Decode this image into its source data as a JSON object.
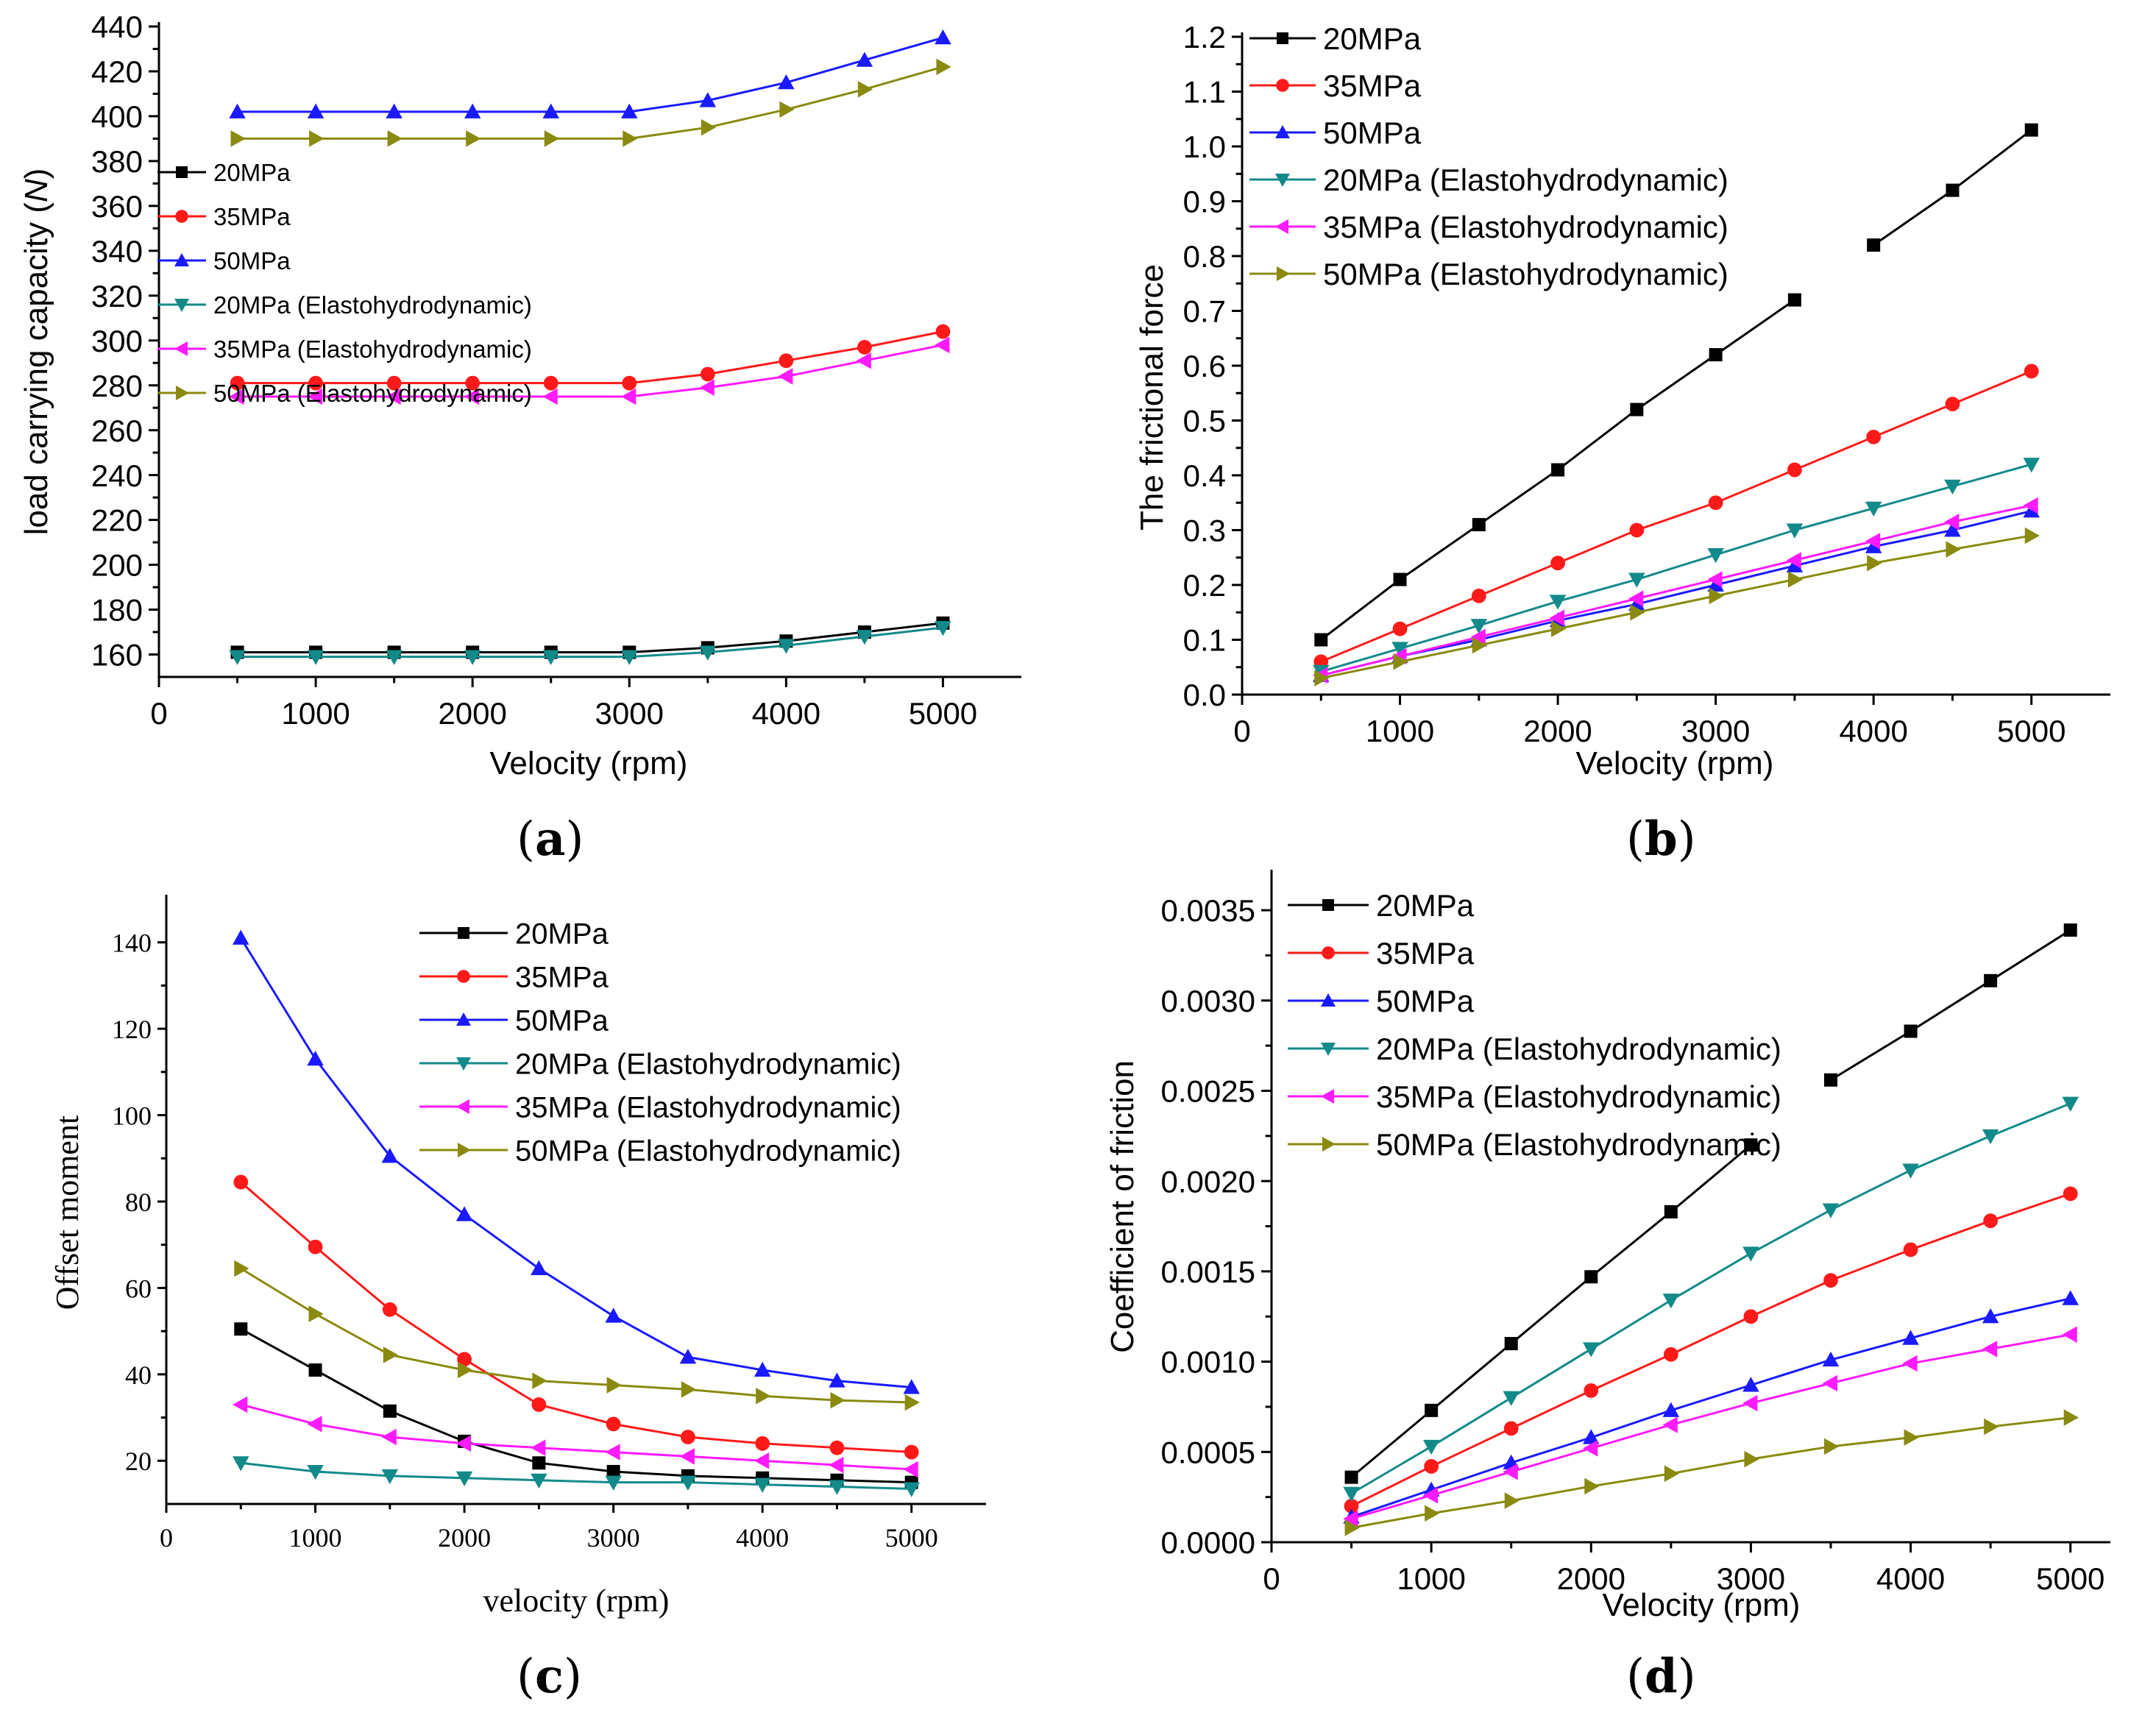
{
  "colors": {
    "20MPa": "#000000",
    "35MPa": "#ff1a1a",
    "50MPa": "#1a1aff",
    "20MPa_EHD": "#138a8a",
    "35MPa_EHD": "#ff1aff",
    "50MPa_EHD": "#8a8a10"
  },
  "chart_data": [
    {
      "panel": "a",
      "type": "line",
      "panel_label": "a",
      "xlabel": "Velocity (rpm)",
      "ylabel_prefix": "load carrying capacity (",
      "ylabel_unit": "N",
      "ylabel_suffix": ")",
      "xlim": [
        0,
        5500
      ],
      "ylim": [
        150,
        440
      ],
      "xticks": [
        0,
        1000,
        2000,
        3000,
        4000,
        5000
      ],
      "yticks": [
        160,
        180,
        200,
        220,
        240,
        260,
        280,
        300,
        320,
        340,
        360,
        380,
        400,
        420,
        440
      ],
      "legend_position": "left-middle",
      "x": [
        500,
        1000,
        1500,
        2000,
        2500,
        3000,
        3500,
        4000,
        4500,
        5000
      ],
      "series": [
        {
          "name": "20MPa",
          "key": "20MPa",
          "marker": "square",
          "values": [
            161,
            161,
            161,
            161,
            161,
            161,
            163,
            166,
            170,
            174
          ]
        },
        {
          "name": "35MPa",
          "key": "35MPa",
          "marker": "circle",
          "values": [
            281,
            281,
            281,
            281,
            281,
            281,
            285,
            291,
            297,
            304
          ]
        },
        {
          "name": "50MPa",
          "key": "50MPa",
          "marker": "triangle-up",
          "values": [
            402,
            402,
            402,
            402,
            402,
            402,
            407,
            415,
            425,
            435
          ]
        },
        {
          "name": "20MPa (Elastohydrodynamic)",
          "key": "20MPa_EHD",
          "marker": "triangle-down",
          "values": [
            159,
            159,
            159,
            159,
            159,
            159,
            161,
            164,
            168,
            172
          ]
        },
        {
          "name": "35MPa (Elastohydrodynamic)",
          "key": "35MPa_EHD",
          "marker": "triangle-left",
          "values": [
            275,
            275,
            275,
            275,
            275,
            275,
            279,
            284,
            291,
            298
          ]
        },
        {
          "name": "50MPa (Elastohydrodynamic)",
          "key": "50MPa_EHD",
          "marker": "triangle-right",
          "values": [
            390,
            390,
            390,
            390,
            390,
            390,
            395,
            403,
            412,
            422
          ]
        }
      ]
    },
    {
      "panel": "b",
      "type": "line",
      "panel_label": "b",
      "xlabel": "Velocity (rpm)",
      "ylabel": "The frictional force",
      "xlim": [
        0,
        5500
      ],
      "ylim": [
        0,
        1.2
      ],
      "xticks": [
        0,
        1000,
        2000,
        3000,
        4000,
        5000
      ],
      "yticks": [
        "0.0",
        "0.1",
        "0.2",
        "0.3",
        "0.4",
        "0.5",
        "0.6",
        "0.7",
        "0.8",
        "0.9",
        "1.0",
        "1.1",
        "1.2"
      ],
      "legend_position": "top-left",
      "x": [
        500,
        1000,
        1500,
        2000,
        2500,
        3000,
        3500,
        4000,
        4500,
        5000
      ],
      "series": [
        {
          "name": "20MPa",
          "key": "20MPa",
          "marker": "square",
          "values": [
            0.1,
            0.21,
            0.31,
            0.41,
            0.52,
            0.62,
            0.72,
            0.82,
            0.92,
            1.03
          ]
        },
        {
          "name": "35MPa",
          "key": "35MPa",
          "marker": "circle",
          "values": [
            0.06,
            0.12,
            0.18,
            0.24,
            0.3,
            0.35,
            0.41,
            0.47,
            0.53,
            0.59
          ]
        },
        {
          "name": "50MPa",
          "key": "50MPa",
          "marker": "triangle-up",
          "values": [
            0.035,
            0.07,
            0.1,
            0.135,
            0.165,
            0.2,
            0.235,
            0.27,
            0.3,
            0.335
          ]
        },
        {
          "name": "20MPa (Elastohydrodynamic)",
          "key": "20MPa_EHD",
          "marker": "triangle-down",
          "values": [
            0.042,
            0.084,
            0.126,
            0.17,
            0.21,
            0.255,
            0.3,
            0.34,
            0.38,
            0.42
          ]
        },
        {
          "name": "35MPa (Elastohydrodynamic)",
          "key": "35MPa_EHD",
          "marker": "triangle-left",
          "values": [
            0.035,
            0.07,
            0.105,
            0.14,
            0.175,
            0.21,
            0.245,
            0.28,
            0.315,
            0.345
          ]
        },
        {
          "name": "50MPa (Elastohydrodynamic)",
          "key": "50MPa_EHD",
          "marker": "triangle-right",
          "values": [
            0.03,
            0.06,
            0.09,
            0.12,
            0.15,
            0.18,
            0.21,
            0.24,
            0.265,
            0.29
          ]
        }
      ]
    },
    {
      "panel": "c",
      "type": "line",
      "panel_label": "c",
      "xlabel": "velocity (rpm)",
      "ylabel": "Offset moment",
      "xlim": [
        0,
        5500
      ],
      "ylim": [
        10,
        150
      ],
      "xticks": [
        0,
        1000,
        2000,
        3000,
        4000,
        5000
      ],
      "yticks": [
        20,
        40,
        60,
        80,
        100,
        120,
        140
      ],
      "legend_position": "top-right",
      "x": [
        500,
        1000,
        1500,
        2000,
        2500,
        3000,
        3500,
        4000,
        4500,
        5000
      ],
      "series": [
        {
          "name": "20MPa",
          "key": "20MPa",
          "marker": "square",
          "values": [
            50.5,
            41,
            31.5,
            24.5,
            19.5,
            17.5,
            16.5,
            16,
            15.5,
            15
          ]
        },
        {
          "name": "35MPa",
          "key": "35MPa",
          "marker": "circle",
          "values": [
            84.5,
            69.5,
            55,
            43.5,
            33,
            28.5,
            25.5,
            24,
            23,
            22
          ]
        },
        {
          "name": "50MPa",
          "key": "50MPa",
          "marker": "triangle-up",
          "values": [
            141,
            113,
            90.5,
            77,
            64.5,
            53.5,
            44,
            41,
            38.5,
            37
          ]
        },
        {
          "name": "20MPa (Elastohydrodynamic)",
          "key": "20MPa_EHD",
          "marker": "triangle-down",
          "values": [
            19.5,
            17.5,
            16.5,
            16,
            15.5,
            15,
            15,
            14.5,
            14,
            13.5
          ]
        },
        {
          "name": "35MPa (Elastohydrodynamic)",
          "key": "35MPa_EHD",
          "marker": "triangle-left",
          "values": [
            33,
            28.5,
            25.5,
            24,
            23,
            22,
            21,
            20,
            19,
            18
          ]
        },
        {
          "name": "50MPa (Elastohydrodynamic)",
          "key": "50MPa_EHD",
          "marker": "triangle-right",
          "values": [
            64.5,
            54,
            44.5,
            41,
            38.5,
            37.5,
            36.5,
            35,
            34,
            33.5
          ]
        }
      ]
    },
    {
      "panel": "d",
      "type": "line",
      "panel_label": "d",
      "xlabel": "Velocity (rpm)",
      "ylabel": "Coefficient of friction",
      "xlim": [
        0,
        5250
      ],
      "ylim": [
        0,
        0.0037
      ],
      "xticks": [
        0,
        1000,
        2000,
        3000,
        4000,
        5000
      ],
      "yticks": [
        "0.0000",
        "0.0005",
        "0.0010",
        "0.0015",
        "0.0020",
        "0.0025",
        "0.0030",
        "0.0035"
      ],
      "legend_position": "top-left",
      "x": [
        500,
        1000,
        1500,
        2000,
        2500,
        3000,
        3500,
        4000,
        4500,
        5000
      ],
      "series": [
        {
          "name": "20MPa",
          "key": "20MPa",
          "marker": "square",
          "values": [
            0.00036,
            0.00073,
            0.0011,
            0.00147,
            0.00183,
            0.0022,
            0.00256,
            0.00283,
            0.00311,
            0.00339
          ]
        },
        {
          "name": "35MPa",
          "key": "35MPa",
          "marker": "circle",
          "values": [
            0.0002,
            0.00042,
            0.00063,
            0.00084,
            0.00104,
            0.00125,
            0.00145,
            0.00162,
            0.00178,
            0.00193
          ]
        },
        {
          "name": "50MPa",
          "key": "50MPa",
          "marker": "triangle-up",
          "values": [
            0.00014,
            0.00029,
            0.00044,
            0.00058,
            0.00073,
            0.00087,
            0.00101,
            0.00113,
            0.00125,
            0.00135
          ]
        },
        {
          "name": "20MPa (Elastohydrodynamic)",
          "key": "20MPa_EHD",
          "marker": "triangle-down",
          "values": [
            0.00027,
            0.00053,
            0.0008,
            0.00107,
            0.00134,
            0.0016,
            0.00184,
            0.00206,
            0.00225,
            0.00243
          ]
        },
        {
          "name": "35MPa (Elastohydrodynamic)",
          "key": "35MPa_EHD",
          "marker": "triangle-left",
          "values": [
            0.00013,
            0.00026,
            0.00039,
            0.00052,
            0.00065,
            0.00077,
            0.00088,
            0.00099,
            0.00107,
            0.00115
          ]
        },
        {
          "name": "50MPa (Elastohydrodynamic)",
          "key": "50MPa_EHD",
          "marker": "triangle-right",
          "values": [
            8e-05,
            0.00016,
            0.00023,
            0.00031,
            0.00038,
            0.00046,
            0.00053,
            0.00058,
            0.00064,
            0.00069
          ]
        }
      ]
    }
  ]
}
